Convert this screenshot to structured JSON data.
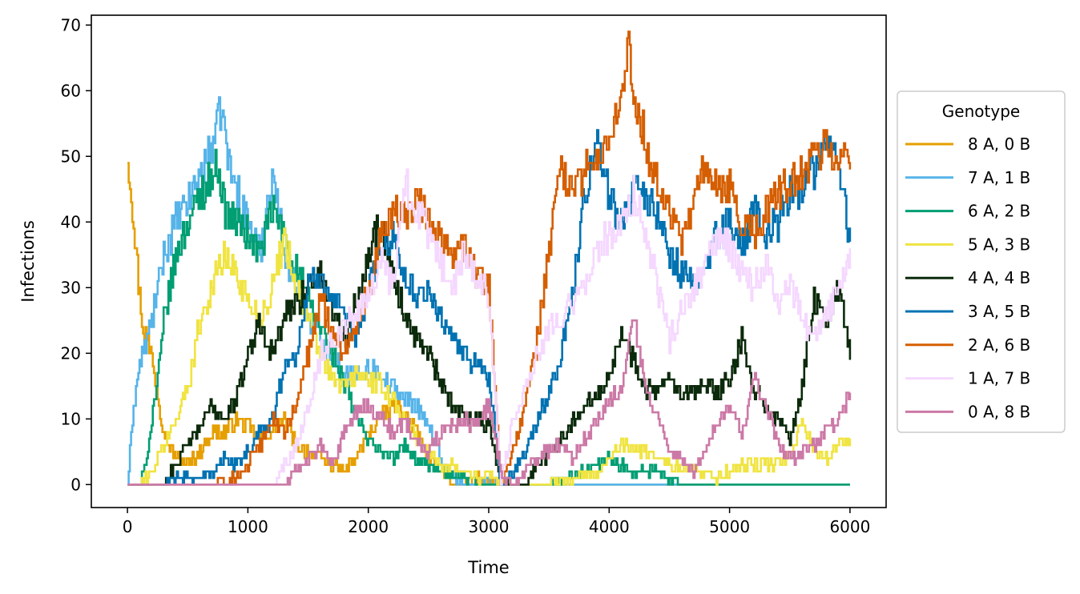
{
  "chart_data": {
    "type": "line",
    "title": "",
    "xlabel": "Time",
    "ylabel": "Infections",
    "xlim": [
      -300,
      6300
    ],
    "ylim": [
      -3.5,
      71.5
    ],
    "xticks": [
      0,
      1000,
      2000,
      3000,
      4000,
      5000,
      6000
    ],
    "yticks": [
      0,
      10,
      20,
      30,
      40,
      50,
      60,
      70
    ],
    "grid": false,
    "legend": {
      "title": "Genotype",
      "placement": "center-right-outside"
    },
    "series": [
      {
        "name": "8 A, 0 B",
        "color": "#E69F00",
        "x": [
          0,
          40,
          80,
          120,
          160,
          200,
          240,
          300,
          400,
          500,
          600,
          700,
          800,
          900,
          1000,
          1100,
          1200,
          1300,
          1400,
          1500,
          1600,
          1700,
          1800,
          1900,
          2000,
          2100,
          2200,
          2300,
          2400,
          2500,
          2600,
          2700,
          2800,
          2900,
          3000,
          3100,
          3200,
          3300,
          4000,
          5000,
          6000
        ],
        "values": [
          50,
          43,
          33,
          25,
          22,
          20,
          15,
          8,
          4,
          3,
          5,
          8,
          8,
          10,
          9,
          7,
          8,
          10,
          6,
          5,
          4,
          3,
          2,
          4,
          8,
          10,
          12,
          11,
          8,
          4,
          2,
          0,
          0,
          1,
          0,
          1,
          0,
          0,
          0,
          0,
          0
        ]
      },
      {
        "name": "7 A, 1 B",
        "color": "#56B4E9",
        "x": [
          0,
          50,
          100,
          200,
          300,
          400,
          500,
          600,
          700,
          780,
          850,
          900,
          1000,
          1100,
          1200,
          1300,
          1400,
          1500,
          1600,
          1700,
          1800,
          1900,
          2000,
          2100,
          2200,
          2300,
          2400,
          2500,
          2600,
          2700,
          2800,
          2900,
          3000,
          3100,
          3500,
          4000,
          5000,
          6000
        ],
        "values": [
          0,
          12,
          18,
          25,
          35,
          40,
          43,
          47,
          52,
          57,
          48,
          45,
          40,
          35,
          48,
          36,
          30,
          26,
          22,
          20,
          17,
          16,
          18,
          17,
          15,
          13,
          12,
          9,
          4,
          1,
          0,
          0,
          1,
          0,
          0,
          0,
          0,
          0
        ]
      },
      {
        "name": "6 A, 2 B",
        "color": "#009E73",
        "x": [
          0,
          100,
          150,
          200,
          250,
          300,
          400,
          500,
          600,
          700,
          750,
          800,
          900,
          1000,
          1100,
          1200,
          1300,
          1400,
          1500,
          1600,
          1700,
          1800,
          1900,
          2000,
          2100,
          2200,
          2300,
          2400,
          2500,
          2600,
          2700,
          2800,
          2900,
          3000,
          3500,
          3800,
          4000,
          4200,
          4400,
          4600,
          5000,
          6000
        ],
        "values": [
          0,
          0,
          3,
          10,
          16,
          25,
          35,
          40,
          44,
          47,
          49,
          42,
          40,
          38,
          35,
          42,
          38,
          33,
          28,
          24,
          20,
          15,
          10,
          7,
          5,
          4,
          6,
          4,
          3,
          2,
          1,
          1,
          0,
          0,
          0,
          2,
          4,
          2,
          2,
          0,
          0,
          0
        ]
      },
      {
        "name": "5 A, 3 B",
        "color": "#F0E442",
        "x": [
          0,
          100,
          200,
          300,
          400,
          500,
          600,
          700,
          800,
          900,
          1000,
          1100,
          1200,
          1300,
          1400,
          1500,
          1600,
          1700,
          1800,
          1900,
          2000,
          2100,
          2200,
          2300,
          2400,
          2500,
          2600,
          2700,
          2800,
          2900,
          3000,
          3100,
          3500,
          3700,
          3900,
          4100,
          4300,
          4500,
          4700,
          4900,
          5100,
          5300,
          5500,
          5600,
          5700,
          5800,
          5900,
          6000
        ],
        "values": [
          0,
          0,
          2,
          6,
          10,
          15,
          25,
          30,
          35,
          32,
          28,
          25,
          30,
          38,
          30,
          25,
          20,
          16,
          15,
          17,
          16,
          15,
          13,
          10,
          7,
          5,
          3,
          3,
          2,
          1,
          2,
          0,
          0,
          1,
          2,
          6,
          5,
          3,
          2,
          1,
          3,
          3,
          4,
          10,
          5,
          4,
          6,
          7
        ]
      },
      {
        "name": "4 A, 4 B",
        "color": "#0B2A0B",
        "x": [
          0,
          200,
          300,
          400,
          500,
          600,
          700,
          800,
          900,
          1000,
          1100,
          1200,
          1300,
          1400,
          1500,
          1600,
          1700,
          1800,
          1900,
          2000,
          2100,
          2200,
          2300,
          2400,
          2500,
          2600,
          2700,
          2800,
          2900,
          3000,
          3100,
          3200,
          3300,
          3400,
          3500,
          3600,
          3700,
          3800,
          3900,
          4000,
          4100,
          4200,
          4300,
          4400,
          4500,
          4600,
          4700,
          4800,
          4900,
          5000,
          5100,
          5200,
          5300,
          5400,
          5500,
          5600,
          5700,
          5800,
          5900,
          6000
        ],
        "values": [
          0,
          0,
          0,
          3,
          6,
          9,
          12,
          10,
          13,
          20,
          25,
          20,
          25,
          28,
          30,
          32,
          27,
          22,
          28,
          36,
          40,
          32,
          26,
          22,
          20,
          15,
          12,
          11,
          10,
          9,
          1,
          0,
          0,
          3,
          5,
          7,
          10,
          12,
          14,
          17,
          23,
          19,
          15,
          14,
          16,
          13,
          14,
          15,
          14,
          16,
          22,
          14,
          12,
          10,
          7,
          15,
          28,
          25,
          30,
          20
        ]
      },
      {
        "name": "3 A, 5 B",
        "color": "#0072B2",
        "x": [
          0,
          300,
          400,
          500,
          600,
          700,
          800,
          900,
          1000,
          1100,
          1200,
          1300,
          1400,
          1500,
          1600,
          1700,
          1800,
          1900,
          2000,
          2100,
          2200,
          2300,
          2400,
          2500,
          2600,
          2700,
          2800,
          2900,
          3000,
          3100,
          3200,
          3300,
          3400,
          3500,
          3600,
          3700,
          3800,
          3900,
          4000,
          4100,
          4200,
          4300,
          4400,
          4500,
          4600,
          4700,
          4800,
          4900,
          5000,
          5100,
          5200,
          5300,
          5400,
          5500,
          5600,
          5700,
          5800,
          5900,
          6000
        ],
        "values": [
          0,
          0,
          1,
          1,
          1,
          2,
          4,
          3,
          5,
          8,
          10,
          18,
          20,
          30,
          32,
          28,
          25,
          22,
          30,
          36,
          38,
          32,
          28,
          30,
          25,
          22,
          20,
          18,
          16,
          0,
          2,
          5,
          10,
          14,
          20,
          30,
          45,
          52,
          44,
          40,
          46,
          44,
          40,
          35,
          32,
          30,
          34,
          38,
          40,
          36,
          42,
          38,
          40,
          44,
          46,
          48,
          52,
          50,
          36
        ]
      },
      {
        "name": "2 A, 6 B",
        "color": "#D55E00",
        "x": [
          0,
          300,
          500,
          700,
          900,
          1000,
          1100,
          1200,
          1300,
          1400,
          1500,
          1600,
          1700,
          1800,
          1900,
          2000,
          2100,
          2200,
          2300,
          2400,
          2500,
          2600,
          2700,
          2800,
          2900,
          3000,
          3100,
          3200,
          3300,
          3400,
          3500,
          3600,
          3700,
          3800,
          3900,
          4000,
          4100,
          4150,
          4200,
          4300,
          4400,
          4500,
          4600,
          4700,
          4800,
          4900,
          5000,
          5100,
          5200,
          5300,
          5400,
          5500,
          5600,
          5700,
          5800,
          5900,
          6000
        ],
        "values": [
          0,
          0,
          0,
          0,
          1,
          3,
          6,
          10,
          8,
          12,
          20,
          28,
          24,
          20,
          25,
          30,
          38,
          42,
          40,
          44,
          40,
          38,
          35,
          36,
          32,
          30,
          0,
          5,
          12,
          22,
          36,
          48,
          44,
          48,
          50,
          52,
          58,
          68,
          60,
          52,
          46,
          42,
          36,
          44,
          48,
          44,
          45,
          40,
          38,
          42,
          44,
          46,
          48,
          50,
          52,
          50,
          50
        ]
      },
      {
        "name": "1 A, 7 B",
        "color": "#F5D8FF",
        "x": [
          0,
          1000,
          1200,
          1300,
          1400,
          1500,
          1600,
          1700,
          1800,
          1900,
          2000,
          2100,
          2200,
          2300,
          2400,
          2500,
          2600,
          2700,
          2800,
          2900,
          3000,
          3100,
          3200,
          3300,
          3400,
          3500,
          3600,
          3700,
          3800,
          3900,
          4000,
          4100,
          4200,
          4300,
          4400,
          4500,
          4600,
          4700,
          4800,
          4900,
          5000,
          5100,
          5200,
          5300,
          5400,
          5500,
          5600,
          5700,
          5800,
          5900,
          6000
        ],
        "values": [
          0,
          0,
          0,
          3,
          6,
          12,
          20,
          22,
          24,
          26,
          28,
          35,
          30,
          46,
          42,
          38,
          34,
          30,
          36,
          32,
          28,
          0,
          10,
          15,
          20,
          24,
          26,
          28,
          30,
          36,
          38,
          40,
          44,
          38,
          30,
          22,
          26,
          30,
          34,
          38,
          36,
          32,
          30,
          34,
          28,
          30,
          25,
          22,
          26,
          30,
          34
        ]
      },
      {
        "name": "0 A, 8 B",
        "color": "#CC79A7",
        "x": [
          0,
          1300,
          1400,
          1500,
          1600,
          1700,
          1800,
          1900,
          2000,
          2100,
          2200,
          2300,
          2400,
          2500,
          2600,
          2700,
          2800,
          2900,
          3000,
          3100,
          3200,
          3300,
          3400,
          3500,
          3600,
          3700,
          3800,
          3900,
          4000,
          4100,
          4200,
          4300,
          4400,
          4500,
          4600,
          4700,
          4800,
          4900,
          5000,
          5100,
          5200,
          5300,
          5400,
          5500,
          5600,
          5700,
          5800,
          5900,
          6000
        ],
        "values": [
          0,
          0,
          2,
          4,
          6,
          3,
          8,
          11,
          12,
          10,
          8,
          10,
          6,
          5,
          8,
          9,
          10,
          9,
          12,
          2,
          0,
          2,
          4,
          5,
          6,
          4,
          7,
          10,
          13,
          15,
          25,
          15,
          10,
          5,
          4,
          2,
          6,
          10,
          12,
          8,
          16,
          12,
          6,
          4,
          5,
          6,
          8,
          10,
          14
        ]
      }
    ]
  }
}
